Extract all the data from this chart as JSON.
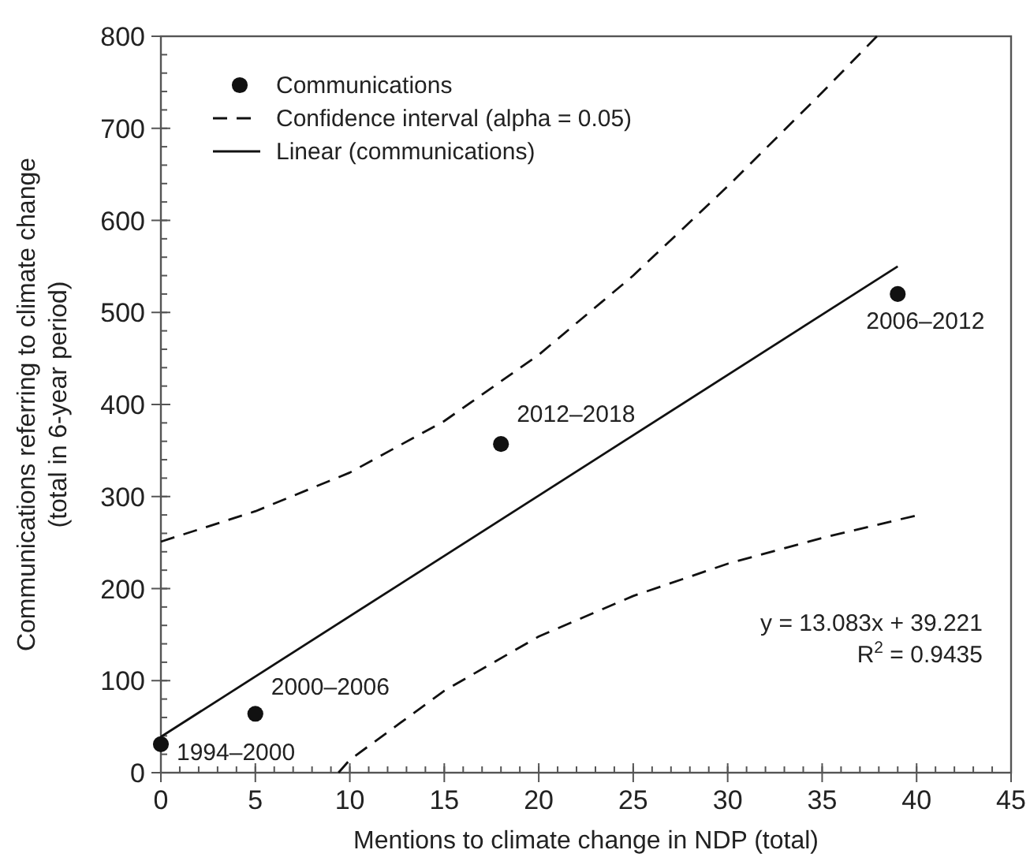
{
  "chart_data": {
    "type": "scatter",
    "xlabel": "Mentions to climate change in NDP (total)",
    "ylabel": "Communications referring to climate change\n(total in 6-year period)",
    "xlim": [
      0,
      45
    ],
    "xticks": [
      0,
      5,
      10,
      15,
      20,
      25,
      30,
      35,
      40,
      45
    ],
    "ylim": [
      0,
      800
    ],
    "yticks": [
      0,
      100,
      200,
      300,
      400,
      500,
      600,
      700,
      800
    ],
    "legend": "top left",
    "grid": false,
    "series": [
      {
        "name": "Communications",
        "marker": "circle",
        "color": "#111111",
        "x": [
          0,
          5,
          18,
          39
        ],
        "values": [
          31,
          64,
          357,
          520
        ]
      },
      {
        "name": "Confidence interval (alpha = 0.05)",
        "type": "line",
        "line_style": "dashed",
        "color": "#111111",
        "x": [
          0,
          5,
          10,
          15,
          20,
          25,
          30,
          35,
          37.9
        ],
        "values": [
          251,
          284,
          326,
          382,
          454,
          540,
          637,
          739,
          800
        ]
      },
      {
        "type": "line",
        "line_style": "dashed",
        "color": "#111111",
        "x": [
          9.4,
          10,
          15,
          20,
          25,
          30,
          35,
          39.9
        ],
        "values": [
          0,
          14,
          89,
          148,
          192,
          227,
          255,
          279
        ]
      },
      {
        "name": "Linear (communications)",
        "type": "line",
        "line_style": "solid",
        "color": "#111111",
        "x": [
          0,
          39
        ],
        "values": [
          39,
          550
        ]
      }
    ],
    "annotations": [
      {
        "text": "1994–2000",
        "x": 0,
        "y": 31
      },
      {
        "text": "2000–2006",
        "x": 5,
        "y": 64
      },
      {
        "text": "2012–2018",
        "x": 18,
        "y": 357
      },
      {
        "text": "2006–2012",
        "x": 39,
        "y": 520
      },
      "y = 13.083x + 39.221",
      "R$^{2}$ = 0.9435"
    ]
  }
}
